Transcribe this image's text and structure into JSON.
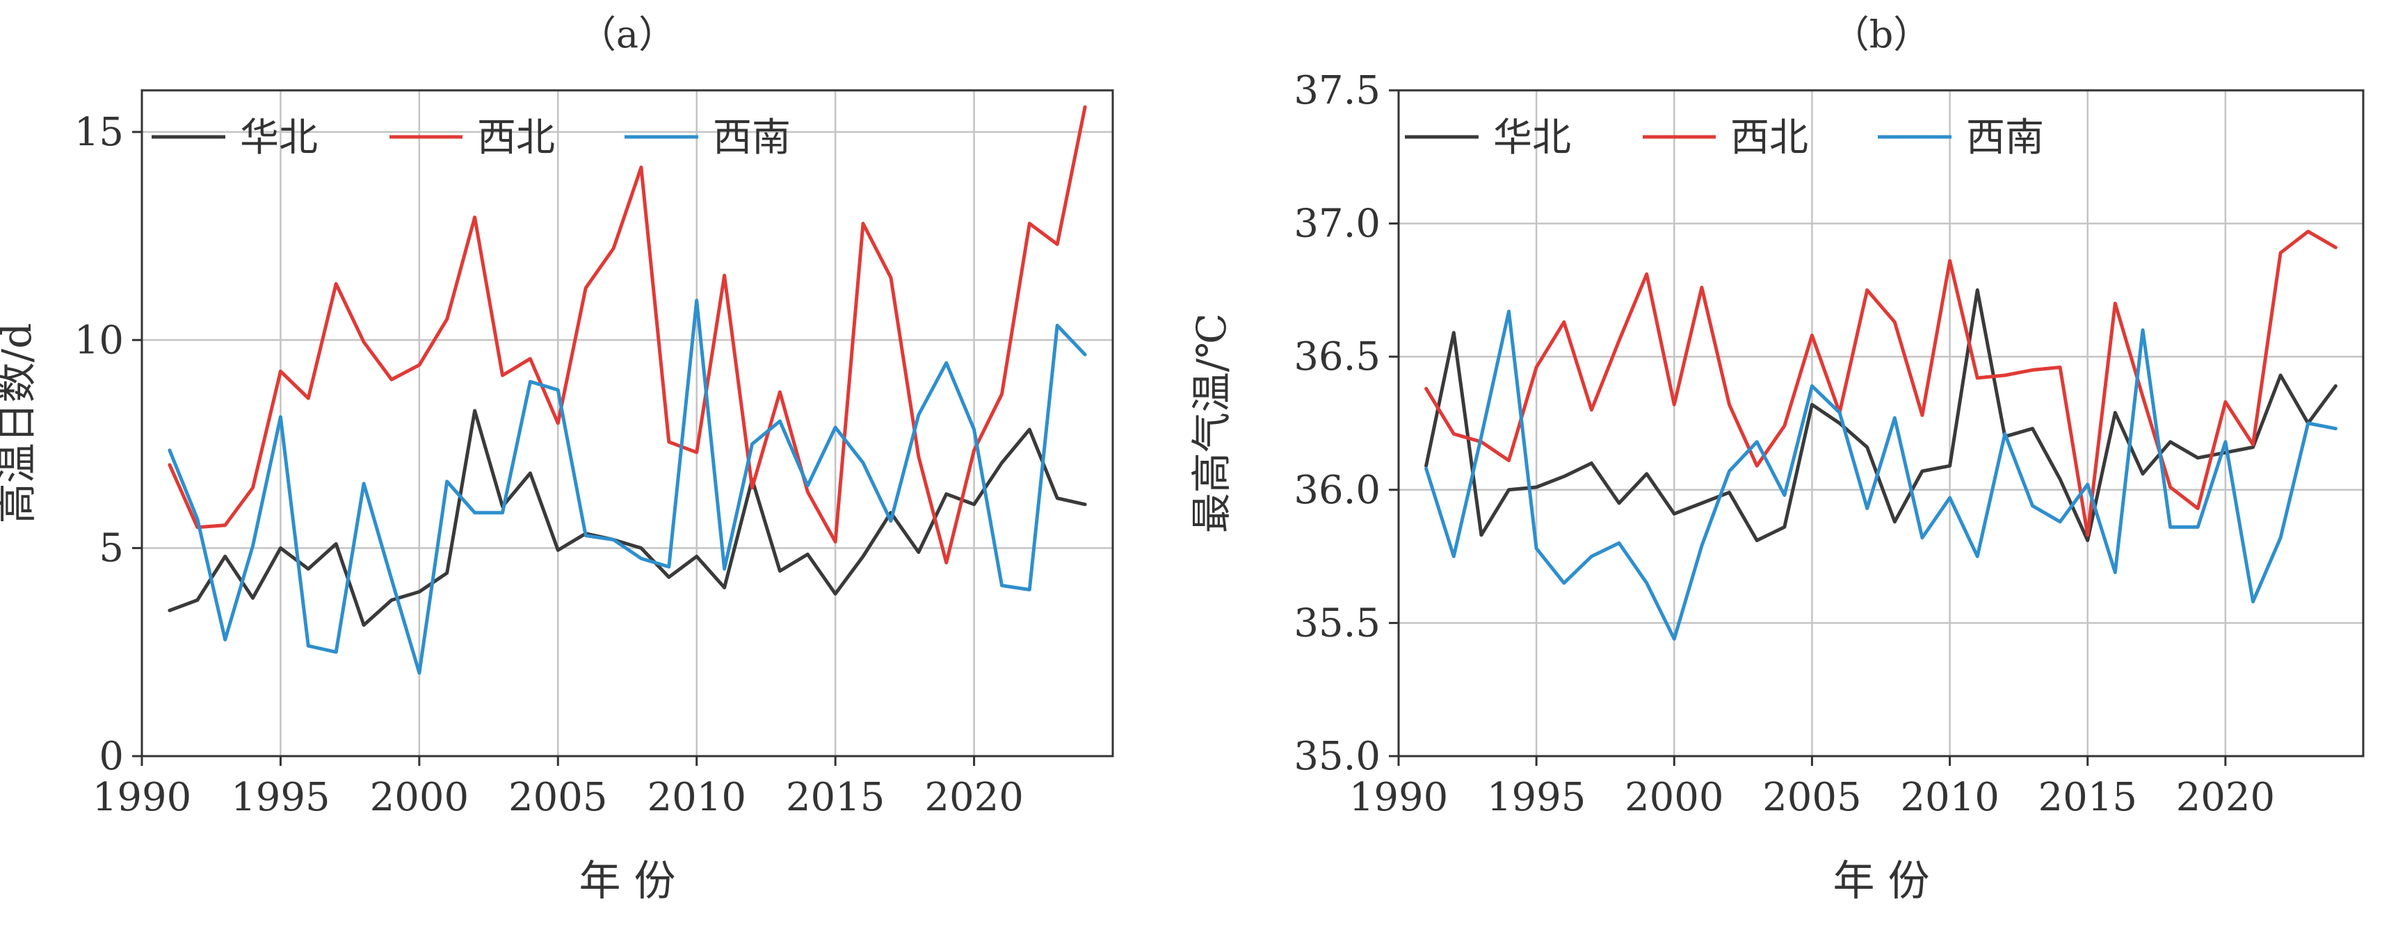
{
  "chart_data": [
    {
      "type": "line",
      "title": "（a）",
      "xlabel": "年 份",
      "ylabel": "高温日数/d",
      "xlim": [
        1990,
        2025
      ],
      "ylim": [
        0,
        16
      ],
      "x_ticks": [
        1990,
        1995,
        2000,
        2005,
        2010,
        2015,
        2020
      ],
      "y_ticks": [
        0,
        5,
        10,
        15
      ],
      "grid": true,
      "legend_position": "top-left",
      "x": [
        1991,
        1992,
        1993,
        1994,
        1995,
        1996,
        1997,
        1998,
        1999,
        2000,
        2001,
        2002,
        2003,
        2004,
        2005,
        2006,
        2007,
        2008,
        2009,
        2010,
        2011,
        2012,
        2013,
        2014,
        2015,
        2016,
        2017,
        2018,
        2019,
        2020,
        2021,
        2022,
        2023,
        2024
      ],
      "series": [
        {
          "name": "华北",
          "color": "#3a3a3a",
          "values": [
            3.5,
            3.75,
            4.8,
            3.8,
            5.0,
            4.5,
            5.1,
            3.15,
            3.75,
            3.95,
            4.4,
            8.3,
            6.0,
            6.8,
            4.95,
            5.35,
            5.2,
            5.0,
            4.3,
            4.8,
            4.05,
            6.65,
            4.45,
            4.85,
            3.9,
            4.8,
            5.85,
            4.9,
            6.3,
            6.05,
            7.05,
            7.85,
            6.2,
            6.05
          ]
        },
        {
          "name": "西北",
          "color": "#e03a36",
          "values": [
            7.0,
            5.5,
            5.55,
            6.45,
            9.25,
            8.6,
            11.35,
            9.95,
            9.05,
            9.4,
            10.5,
            12.95,
            9.15,
            9.55,
            8.0,
            11.25,
            12.2,
            14.15,
            7.55,
            7.3,
            11.55,
            6.45,
            8.75,
            6.35,
            5.15,
            12.8,
            11.5,
            7.2,
            4.65,
            7.35,
            8.7,
            12.8,
            12.3,
            15.6
          ]
        },
        {
          "name": "西南",
          "color": "#2e8fcd",
          "values": [
            7.35,
            5.7,
            2.8,
            5.05,
            8.15,
            2.65,
            2.5,
            6.55,
            4.25,
            2.0,
            6.6,
            5.85,
            5.85,
            9.0,
            8.8,
            5.3,
            5.2,
            4.75,
            4.55,
            10.95,
            4.5,
            7.5,
            8.05,
            6.5,
            7.9,
            7.05,
            5.65,
            8.2,
            9.45,
            7.85,
            4.1,
            4.0,
            10.35,
            9.65
          ]
        }
      ]
    },
    {
      "type": "line",
      "title": "（b）",
      "xlabel": "年 份",
      "ylabel": "最高气温/℃",
      "xlim": [
        1990,
        2025
      ],
      "ylim": [
        35.0,
        37.5
      ],
      "x_ticks": [
        1990,
        1995,
        2000,
        2005,
        2010,
        2015,
        2020
      ],
      "y_ticks": [
        "35.0",
        "35.5",
        "36.0",
        "36.5",
        "37.0",
        "37.5"
      ],
      "grid": true,
      "legend_position": "top-left",
      "x": [
        1991,
        1992,
        1993,
        1994,
        1995,
        1996,
        1997,
        1998,
        1999,
        2000,
        2001,
        2002,
        2003,
        2004,
        2005,
        2006,
        2007,
        2008,
        2009,
        2010,
        2011,
        2012,
        2013,
        2014,
        2015,
        2016,
        2017,
        2018,
        2019,
        2020,
        2021,
        2022,
        2023,
        2024
      ],
      "series": [
        {
          "name": "华北",
          "color": "#3a3a3a",
          "values": [
            36.09,
            36.59,
            35.83,
            36.0,
            36.01,
            36.05,
            36.1,
            35.95,
            36.06,
            35.91,
            35.95,
            35.99,
            35.81,
            35.86,
            36.32,
            36.25,
            36.16,
            35.88,
            36.07,
            36.09,
            36.75,
            36.2,
            36.23,
            36.04,
            35.81,
            36.29,
            36.06,
            36.18,
            36.12,
            36.14,
            36.16,
            36.43,
            36.25,
            36.39
          ]
        },
        {
          "name": "西北",
          "color": "#e03a36",
          "values": [
            36.38,
            36.21,
            36.18,
            36.11,
            36.46,
            36.63,
            36.3,
            36.56,
            36.81,
            36.32,
            36.76,
            36.32,
            36.09,
            36.24,
            36.58,
            36.29,
            36.75,
            36.63,
            36.28,
            36.86,
            36.42,
            36.43,
            36.45,
            36.46,
            35.83,
            36.7,
            36.35,
            36.01,
            35.93,
            36.33,
            36.17,
            36.89,
            36.97,
            36.91
          ]
        },
        {
          "name": "西南",
          "color": "#2e8fcd",
          "values": [
            36.08,
            35.75,
            36.2,
            36.67,
            35.78,
            35.65,
            35.75,
            35.8,
            35.65,
            35.44,
            35.79,
            36.07,
            36.18,
            35.98,
            36.39,
            36.29,
            35.93,
            36.27,
            35.82,
            35.97,
            35.75,
            36.21,
            35.94,
            35.88,
            36.02,
            35.69,
            36.6,
            35.86,
            35.86,
            36.18,
            35.58,
            35.82,
            36.25,
            36.23
          ]
        }
      ]
    }
  ]
}
